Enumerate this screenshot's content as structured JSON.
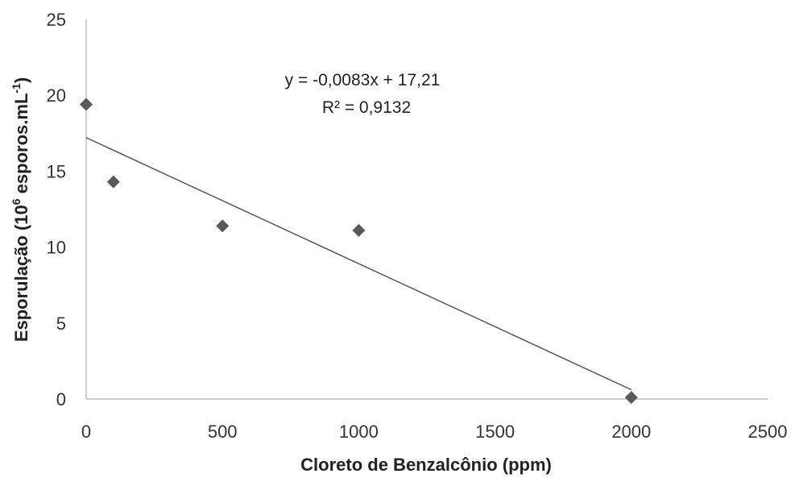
{
  "chart_data": {
    "type": "scatter",
    "xlabel": "Cloreto de Benzalcônio (ppm)",
    "ylabel_prefix": "Esporulação (10",
    "ylabel_exp1": "6",
    "ylabel_mid": " esporos.mL",
    "ylabel_exp2": "-1",
    "ylabel_suffix": ")",
    "xlim": [
      0,
      2500
    ],
    "ylim": [
      0,
      25
    ],
    "x_ticks": [
      "0",
      "500",
      "1000",
      "1500",
      "2000",
      "2500"
    ],
    "y_ticks": [
      "0",
      "5",
      "10",
      "15",
      "20",
      "25"
    ],
    "grid": false,
    "series": [
      {
        "x": [
          0,
          100,
          500,
          1000,
          2000
        ],
        "y": [
          19.4,
          14.3,
          11.4,
          11.1,
          0.1
        ],
        "marker": "diamond",
        "color": "#595959"
      }
    ],
    "trendline": {
      "slope": -0.0083,
      "intercept": 17.21,
      "x_range": [
        0,
        2000
      ],
      "color": "#595959",
      "equation": "y = -0,0083x + 17,21",
      "r_squared": "R² = 0,9132"
    }
  }
}
